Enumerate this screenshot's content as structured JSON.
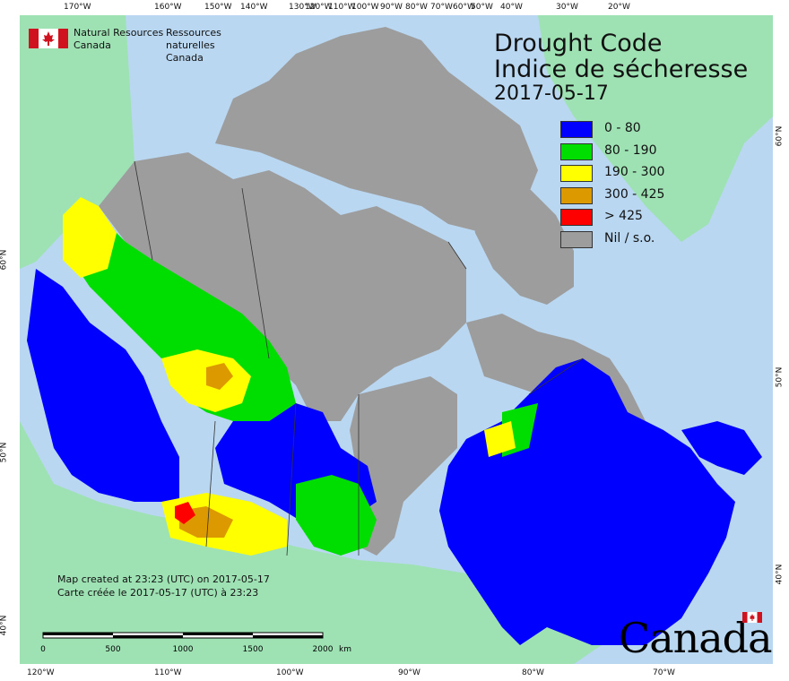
{
  "colors": {
    "ocean": "#b9d7f1",
    "land_other": "#9ee2b4",
    "nil": "#9d9d9d",
    "cls_0_80": "#0000ff",
    "cls_80_190": "#00dd00",
    "cls_190_300": "#ffff00",
    "cls_300_425": "#dd9900",
    "cls_gt_425": "#ff0000",
    "flag_red": "#d0121e"
  },
  "header": {
    "org_en_line1": "Natural Resources",
    "org_en_line2": "Canada",
    "org_fr_line1": "Ressources naturelles",
    "org_fr_line2": "Canada"
  },
  "title": {
    "en": "Drought Code",
    "fr": "Indice de sécheresse",
    "date": "2017-05-17"
  },
  "legend": [
    {
      "label": "0 - 80",
      "color": "#0000ff"
    },
    {
      "label": "80 - 190",
      "color": "#00dd00"
    },
    {
      "label": "190 - 300",
      "color": "#ffff00"
    },
    {
      "label": "300 - 425",
      "color": "#dd9900"
    },
    {
      "label": "> 425",
      "color": "#ff0000"
    },
    {
      "label": "Nil / s.o.",
      "color": "#9d9d9d"
    }
  ],
  "footer": {
    "created_en": "Map created at 23:23 (UTC) on 2017-05-17",
    "created_fr": "Carte créée le 2017-05-17 (UTC) à 23:23",
    "wordmark": "Canada"
  },
  "scale_bar": {
    "labels": [
      "0",
      "500",
      "1000",
      "1500",
      "2000"
    ],
    "unit": "km"
  },
  "graticule": {
    "top_longitudes": [
      "170°W",
      "160°W",
      "150°W",
      "140°W",
      "130°W",
      "120°W",
      "110°W",
      "100°W",
      "90°W",
      "80°W",
      "70°W",
      "60°W",
      "50°W",
      "40°W",
      "30°W",
      "20°W"
    ],
    "bottom_longitudes": [
      "120°W",
      "110°W",
      "100°W",
      "90°W",
      "80°W",
      "70°W"
    ],
    "left_latitudes": [
      "60°N",
      "50°N",
      "40°N"
    ],
    "right_latitudes": [
      "60°N",
      "50°N",
      "40°N"
    ]
  }
}
